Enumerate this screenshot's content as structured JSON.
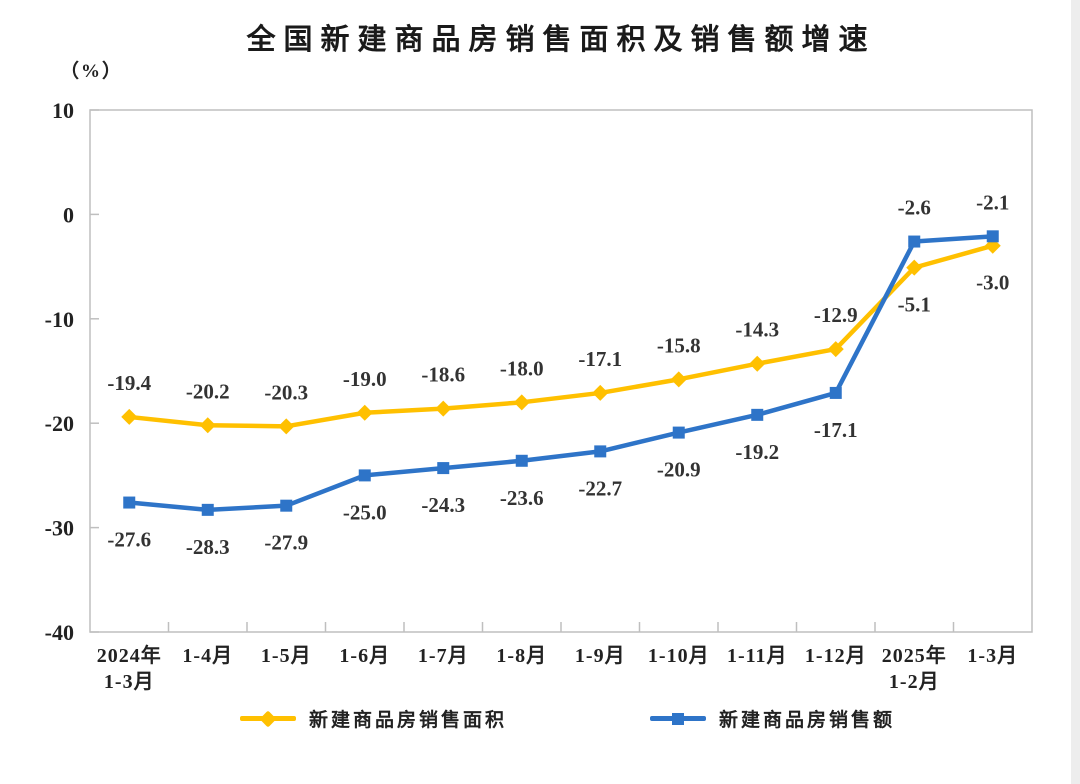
{
  "chart_data": {
    "type": "line",
    "title": "全国新建商品房销售面积及销售额增速",
    "unit_label": "（%）",
    "ylim": [
      -40,
      10
    ],
    "yticks": [
      10,
      0,
      -10,
      -20,
      -30,
      -40
    ],
    "grid": false,
    "legend_position": "bottom",
    "axis_color": "#BFBFBF",
    "label_color": "#333333",
    "categories": [
      [
        "2024年",
        "1-3月"
      ],
      [
        "1-4月"
      ],
      [
        "1-5月"
      ],
      [
        "1-6月"
      ],
      [
        "1-7月"
      ],
      [
        "1-8月"
      ],
      [
        "1-9月"
      ],
      [
        "1-10月"
      ],
      [
        "1-11月"
      ],
      [
        "1-12月"
      ],
      [
        "2025年",
        "1-2月"
      ],
      [
        "1-3月"
      ]
    ],
    "series": [
      {
        "name": "新建商品房销售面积",
        "color": "#FFC000",
        "marker": "diamond",
        "values": [
          -19.4,
          -20.2,
          -20.3,
          -19.0,
          -18.6,
          -18.0,
          -17.1,
          -15.8,
          -14.3,
          -12.9,
          -5.1,
          -3.0
        ],
        "label_side_default": "above",
        "label_side_overrides": {
          "10": "below",
          "11": "below"
        }
      },
      {
        "name": "新建商品房销售额",
        "color": "#2E74C8",
        "marker": "square",
        "values": [
          -27.6,
          -28.3,
          -27.9,
          -25.0,
          -24.3,
          -23.6,
          -22.7,
          -20.9,
          -19.2,
          -17.1,
          -2.6,
          -2.1
        ],
        "label_side_default": "below",
        "label_side_overrides": {
          "10": "above",
          "11": "above"
        }
      }
    ]
  }
}
